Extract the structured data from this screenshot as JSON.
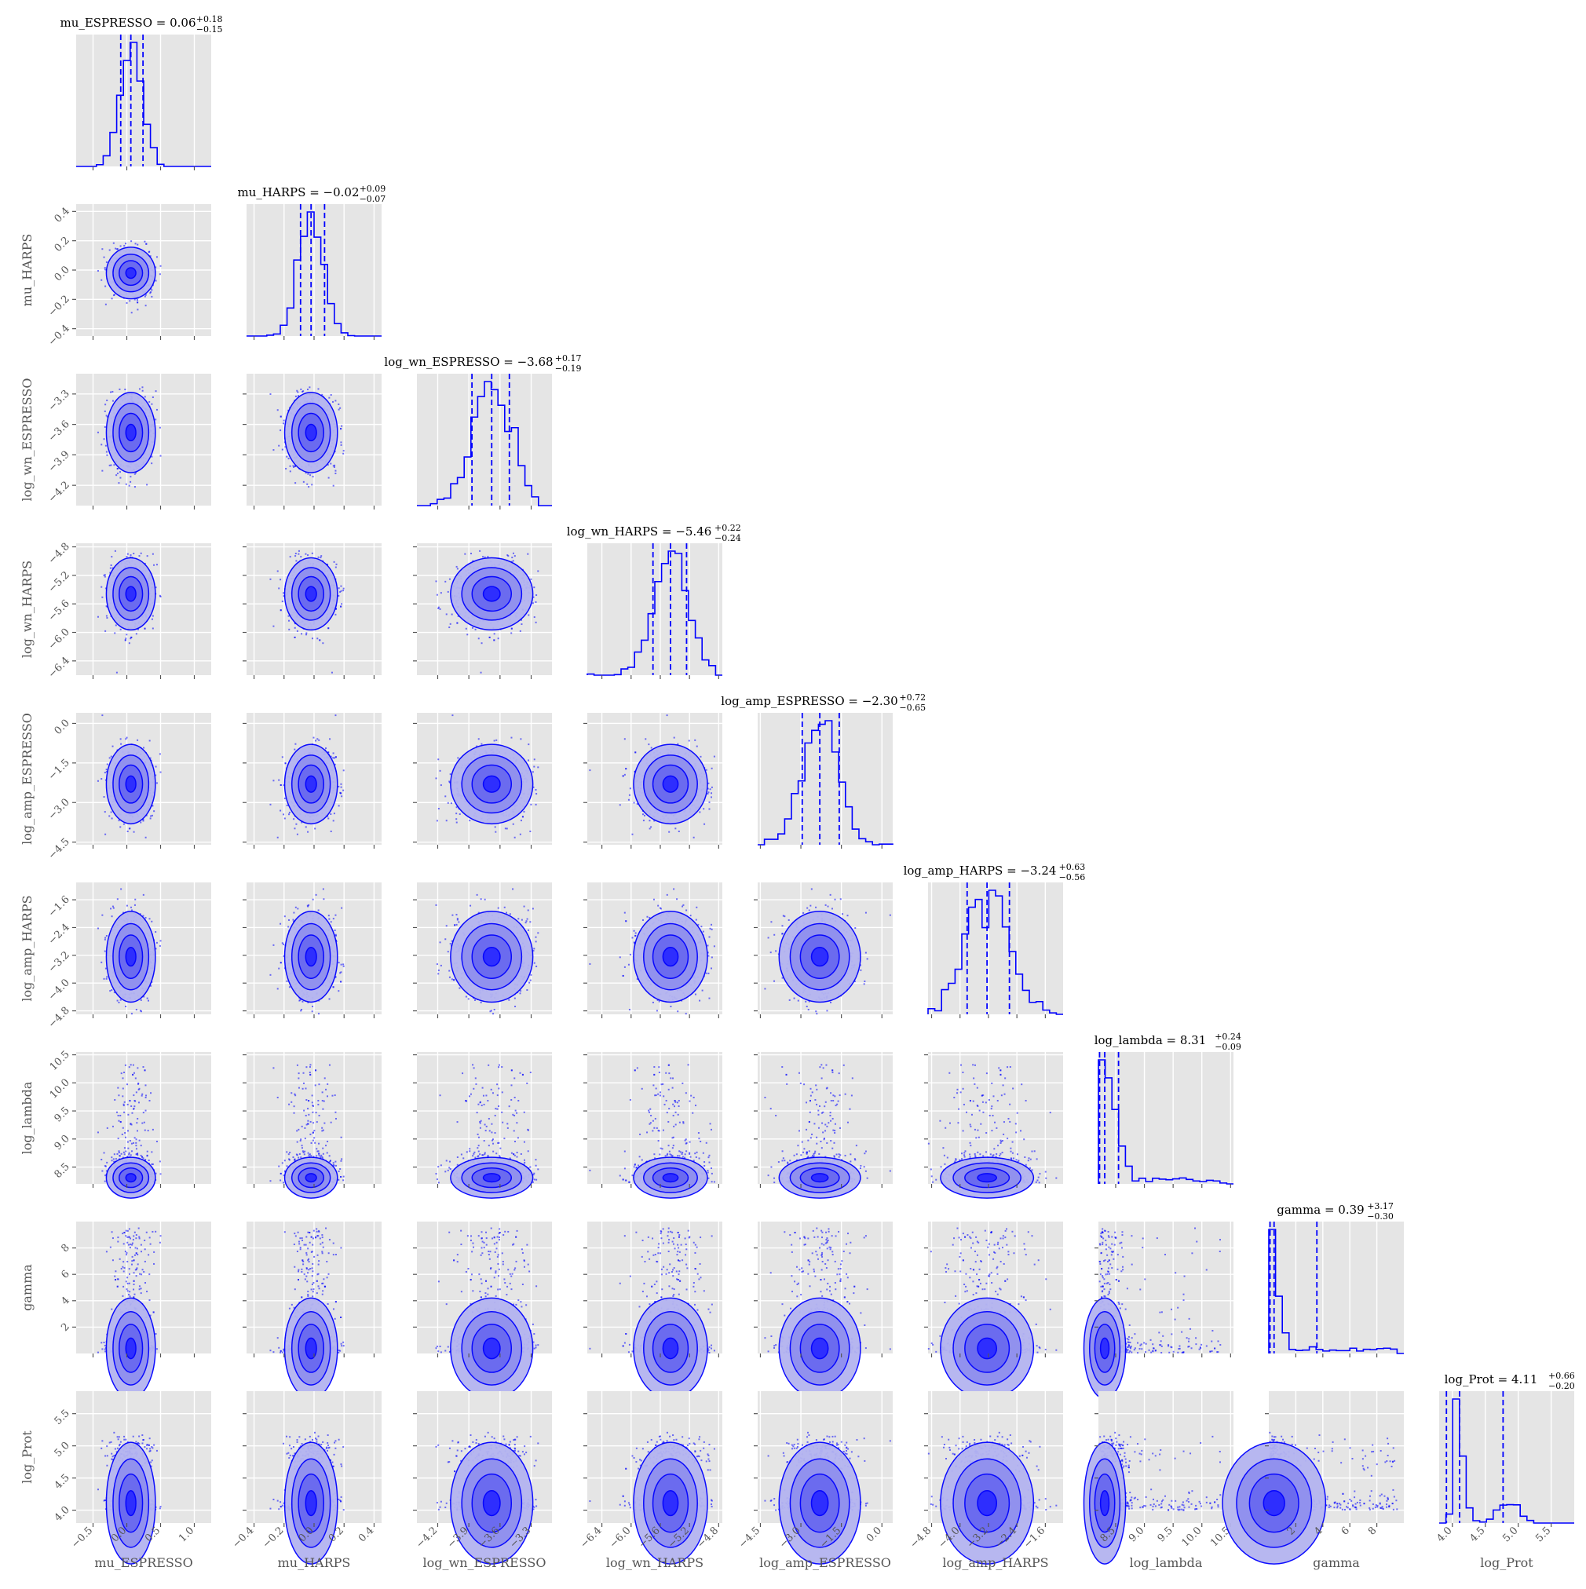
{
  "chart_data": {
    "type": "scatter",
    "subtype": "corner-plot",
    "colors": {
      "series": "#0000ff",
      "panel_bg": "#e5e5e5",
      "grid": "#ffffff",
      "tick": "#555555"
    },
    "grid": true,
    "params": [
      {
        "name": "mu_ESPRESSO",
        "range": [
          -0.75,
          1.25
        ],
        "median": 0.06,
        "q_lo": -0.09,
        "q_hi": 0.24,
        "ticks": [
          -0.5,
          0.0,
          0.5,
          1.0
        ],
        "tick_labels": [
          "−0.5",
          "0.0",
          "0.5",
          "1.0"
        ],
        "title_main": "mu_ESPRESSO = 0.06",
        "title_sup": "+0.18",
        "title_sub": "−0.15"
      },
      {
        "name": "mu_HARPS",
        "range": [
          -0.45,
          0.45
        ],
        "median": -0.02,
        "q_lo": -0.09,
        "q_hi": 0.07,
        "ticks": [
          -0.4,
          -0.2,
          0.0,
          0.2,
          0.4
        ],
        "tick_labels": [
          "−0.4",
          "−0.2",
          "0.0",
          "0.2",
          "0.4"
        ],
        "title_main": "mu_HARPS = −0.02",
        "title_sup": "+0.09",
        "title_sub": "−0.07"
      },
      {
        "name": "log_wn_ESPRESSO",
        "range": [
          -4.4,
          -3.1
        ],
        "median": -3.68,
        "q_lo": -3.87,
        "q_hi": -3.51,
        "ticks": [
          -4.2,
          -3.9,
          -3.6,
          -3.3
        ],
        "tick_labels": [
          "−4.2",
          "−3.9",
          "−3.6",
          "−3.3"
        ],
        "title_main": "log_wn_ESPRESSO = −3.68",
        "title_sup": "+0.17",
        "title_sub": "−0.19"
      },
      {
        "name": "log_wn_HARPS",
        "range": [
          -6.6,
          -4.75
        ],
        "median": -5.46,
        "q_lo": -5.7,
        "q_hi": -5.24,
        "ticks": [
          -6.4,
          -6.0,
          -5.6,
          -5.2,
          -4.8
        ],
        "tick_labels": [
          "−6.4",
          "−6.0",
          "−5.6",
          "−5.2",
          "−4.8"
        ],
        "title_main": "log_wn_HARPS = −5.46",
        "title_sup": "+0.22",
        "title_sub": "−0.24"
      },
      {
        "name": "log_amp_ESPRESSO",
        "range": [
          -4.6,
          0.4
        ],
        "median": -2.3,
        "q_lo": -2.95,
        "q_hi": -1.58,
        "ticks": [
          -4.5,
          -3.0,
          -1.5,
          0.0
        ],
        "tick_labels": [
          "−4.5",
          "−3.0",
          "−1.5",
          "0.0"
        ],
        "title_main": "log_amp_ESPRESSO = −2.30",
        "title_sup": "+0.72",
        "title_sub": "−0.65"
      },
      {
        "name": "log_amp_HARPS",
        "range": [
          -4.9,
          -1.1
        ],
        "median": -3.24,
        "q_lo": -3.8,
        "q_hi": -2.61,
        "ticks": [
          -4.8,
          -4.0,
          -3.2,
          -2.4,
          -1.6
        ],
        "tick_labels": [
          "−4.8",
          "−4.0",
          "−3.2",
          "−2.4",
          "−1.6"
        ],
        "title_main": "log_amp_HARPS = −3.24",
        "title_sup": "+0.63",
        "title_sub": "−0.56"
      },
      {
        "name": "log_lambda",
        "range": [
          8.2,
          10.55
        ],
        "median": 8.31,
        "q_lo": 8.22,
        "q_hi": 8.55,
        "ticks": [
          8.5,
          9.0,
          9.5,
          10.0,
          10.5
        ],
        "tick_labels": [
          "8.5",
          "9.0",
          "9.5",
          "10.0",
          "10.5"
        ],
        "title_main": "log_lambda = 8.31",
        "title_sup": "+0.24",
        "title_sub": "−0.09"
      },
      {
        "name": "gamma",
        "range": [
          0.0,
          10.0
        ],
        "median": 0.39,
        "q_lo": 0.09,
        "q_hi": 3.56,
        "ticks": [
          2,
          4,
          6,
          8
        ],
        "tick_labels": [
          "2",
          "4",
          "6",
          "8"
        ],
        "title_main": "gamma = 0.39",
        "title_sup": "+3.17",
        "title_sub": "−0.30"
      },
      {
        "name": "log_Prot",
        "range": [
          3.8,
          5.85
        ],
        "median": 4.11,
        "q_lo": 3.91,
        "q_hi": 4.77,
        "ticks": [
          4.0,
          4.5,
          5.0,
          5.5
        ],
        "tick_labels": [
          "4.0",
          "4.5",
          "5.0",
          "5.5"
        ],
        "title_main": "log_Prot = 4.11",
        "title_sup": "+0.66",
        "title_sub": "−0.20"
      }
    ]
  }
}
